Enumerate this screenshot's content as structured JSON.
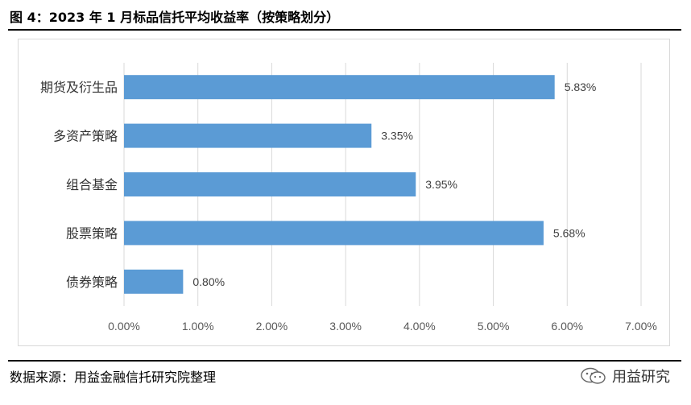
{
  "header": {
    "title": "图 4：2023 年 1 月标品信托平均收益率（按策略划分）"
  },
  "footer": {
    "source": "数据来源：用益金融信托研究院整理",
    "brand": "用益研究"
  },
  "colors": {
    "bar": "#5b9bd5",
    "grid": "#d9d9d9"
  },
  "icons": {
    "brand_icon": "wechat-icon"
  },
  "chart_data": {
    "type": "bar",
    "orientation": "horizontal",
    "categories": [
      "期货及衍生品",
      "多资产策略",
      "组合基金",
      "股票策略",
      "债券策略"
    ],
    "values": [
      5.83,
      3.35,
      3.95,
      5.68,
      0.8
    ],
    "value_labels": [
      "5.83%",
      "3.35%",
      "3.95%",
      "5.68%",
      "0.80%"
    ],
    "xlim": [
      0,
      7
    ],
    "xticks": [
      0,
      1,
      2,
      3,
      4,
      5,
      6,
      7
    ],
    "xtick_labels": [
      "0.00%",
      "1.00%",
      "2.00%",
      "3.00%",
      "4.00%",
      "5.00%",
      "6.00%",
      "7.00%"
    ],
    "grid": true
  }
}
